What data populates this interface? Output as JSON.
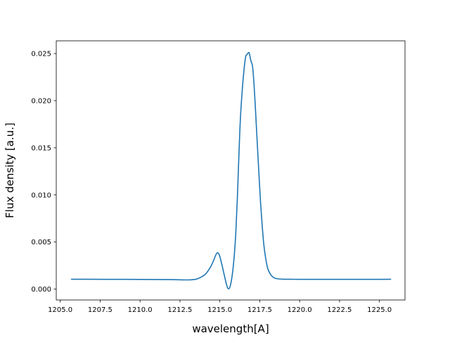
{
  "chart_data": {
    "type": "line",
    "title": "",
    "xlabel": "wavelength[A]",
    "ylabel": "Flux density [a.u.]",
    "xlim": [
      1204.75,
      1226.6
    ],
    "ylim": [
      -0.00115,
      0.02635
    ],
    "x_ticks": [
      {
        "value": 1205.0,
        "label": "1205.0"
      },
      {
        "value": 1207.5,
        "label": "1207.5"
      },
      {
        "value": 1210.0,
        "label": "1210.0"
      },
      {
        "value": 1212.5,
        "label": "1212.5"
      },
      {
        "value": 1215.0,
        "label": "1215.0"
      },
      {
        "value": 1217.5,
        "label": "1217.5"
      },
      {
        "value": 1220.0,
        "label": "1220.0"
      },
      {
        "value": 1222.5,
        "label": "1222.5"
      },
      {
        "value": 1225.0,
        "label": "1225.0"
      }
    ],
    "y_ticks": [
      {
        "value": 0.0,
        "label": "0.000"
      },
      {
        "value": 0.005,
        "label": "0.005"
      },
      {
        "value": 0.01,
        "label": "0.010"
      },
      {
        "value": 0.015,
        "label": "0.015"
      },
      {
        "value": 0.02,
        "label": "0.020"
      },
      {
        "value": 0.025,
        "label": "0.025"
      }
    ],
    "grid": false,
    "series": [
      {
        "color": "#1f77b4",
        "x": [
          1205.7,
          1207.0,
          1208.0,
          1209.0,
          1210.0,
          1211.0,
          1212.0,
          1213.0,
          1213.5,
          1213.8,
          1214.1,
          1214.4,
          1214.6,
          1214.8,
          1214.95,
          1215.1,
          1215.25,
          1215.4,
          1215.5,
          1215.6,
          1215.7,
          1215.8,
          1215.9,
          1216.0,
          1216.1,
          1216.2,
          1216.3,
          1216.45,
          1216.6,
          1216.7,
          1216.8,
          1216.85,
          1216.95,
          1217.05,
          1217.15,
          1217.25,
          1217.35,
          1217.45,
          1217.55,
          1217.65,
          1217.75,
          1217.85,
          1218.0,
          1218.2,
          1218.4,
          1218.6,
          1219.0,
          1219.5,
          1220.0,
          1221.0,
          1222.0,
          1223.0,
          1224.0,
          1225.0,
          1225.7
        ],
        "y": [
          0.00105,
          0.00105,
          0.00104,
          0.00104,
          0.00103,
          0.00102,
          0.00101,
          0.00098,
          0.00105,
          0.00125,
          0.0016,
          0.0023,
          0.003,
          0.0038,
          0.0037,
          0.0028,
          0.0017,
          0.0006,
          0.0001,
          0.0001,
          0.0007,
          0.0018,
          0.0035,
          0.006,
          0.0098,
          0.0145,
          0.0185,
          0.0221,
          0.0245,
          0.0249,
          0.0251,
          0.025,
          0.0242,
          0.0236,
          0.0215,
          0.0185,
          0.0153,
          0.0122,
          0.0092,
          0.0068,
          0.0048,
          0.0035,
          0.0022,
          0.0015,
          0.0012,
          0.0011,
          0.00105,
          0.00105,
          0.00104,
          0.00104,
          0.00104,
          0.00104,
          0.00104,
          0.00104,
          0.00105
        ]
      }
    ]
  }
}
